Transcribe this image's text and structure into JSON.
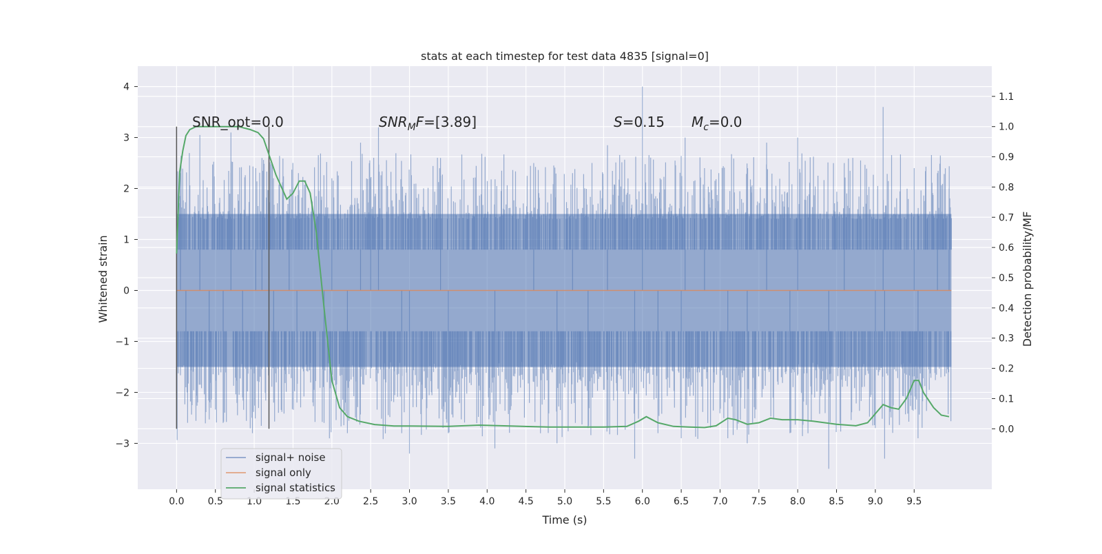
{
  "chart_data": {
    "type": "line",
    "title": "stats at each timestep for test data 4835 [signal=0]",
    "xlabel": "Time (s)",
    "ylabel_left": "Whitened strain",
    "ylabel_right": "Detection probability/MF",
    "xlim": [
      -0.5,
      10.5
    ],
    "ylim_left": [
      -3.9,
      4.4
    ],
    "ylim_right": [
      -0.2,
      1.2
    ],
    "x_ticks": [
      "0.0",
      "0.5",
      "1.0",
      "1.5",
      "2.0",
      "2.5",
      "3.0",
      "3.5",
      "4.0",
      "4.5",
      "5.0",
      "5.5",
      "6.0",
      "6.5",
      "7.0",
      "7.5",
      "8.0",
      "8.5",
      "9.0",
      "9.5"
    ],
    "y_ticks_left": [
      "−3",
      "−2",
      "−1",
      "0",
      "1",
      "2",
      "3",
      "4"
    ],
    "y_ticks_right": [
      "0.0",
      "0.1",
      "0.2",
      "0.3",
      "0.4",
      "0.5",
      "0.6",
      "0.7",
      "0.8",
      "0.9",
      "1.0",
      "1.1"
    ],
    "grid": true,
    "background": "#eaeaf2",
    "legend_position": "lower-left",
    "colors": {
      "noise": "#4c72b0",
      "signal": "#dd8452",
      "stats": "#55a868",
      "marker": "#555555"
    },
    "annotations": {
      "snr_opt": "SNR_opt=0.0",
      "snr_mf_sym": "SNR",
      "snr_mf_sub": "M",
      "snr_mf_sym2": "F",
      "snr_mf_val": "=[3.89]",
      "s_sym": "S",
      "s_val": "=0.15",
      "mc_sym": "M",
      "mc_sub": "c",
      "mc_val": "=0.0"
    },
    "vertical_markers": [
      0.0,
      1.19
    ],
    "series": [
      {
        "name": "signal+ noise",
        "style": "band",
        "x_range": [
          0.0,
          9.98
        ],
        "body_range": [
          -1.5,
          1.5
        ],
        "peaks": [
          [
            0.05,
            2.3
          ],
          [
            0.12,
            -1.9
          ],
          [
            0.3,
            3.05
          ],
          [
            0.42,
            -2.3
          ],
          [
            0.6,
            -2.6
          ],
          [
            0.7,
            3.1
          ],
          [
            0.85,
            -2.1
          ],
          [
            1.02,
            2.4
          ],
          [
            1.1,
            2.6
          ],
          [
            1.25,
            -2.2
          ],
          [
            1.45,
            1.8
          ],
          [
            1.55,
            -2.2
          ],
          [
            1.9,
            -2.6
          ],
          [
            2.0,
            2.2
          ],
          [
            2.2,
            -2.8
          ],
          [
            2.37,
            2.9
          ],
          [
            2.5,
            2.2
          ],
          [
            2.6,
            3.2
          ],
          [
            2.9,
            -2.8
          ],
          [
            3.0,
            -3.2
          ],
          [
            3.4,
            2.6
          ],
          [
            3.5,
            -2.8
          ],
          [
            4.1,
            -3.1
          ],
          [
            4.6,
            2.5
          ],
          [
            4.9,
            -3.0
          ],
          [
            5.1,
            2.3
          ],
          [
            5.3,
            -2.7
          ],
          [
            5.55,
            2.85
          ],
          [
            5.9,
            -3.3
          ],
          [
            6.0,
            4.0
          ],
          [
            6.2,
            -2.8
          ],
          [
            6.5,
            -2.9
          ],
          [
            6.55,
            3.0
          ],
          [
            6.8,
            2.4
          ],
          [
            7.1,
            -2.9
          ],
          [
            7.35,
            -3.0
          ],
          [
            7.6,
            2.9
          ],
          [
            7.9,
            -2.8
          ],
          [
            8.0,
            3.0
          ],
          [
            8.4,
            -3.5
          ],
          [
            8.6,
            2.5
          ],
          [
            9.0,
            -2.7
          ],
          [
            9.1,
            3.6
          ],
          [
            9.12,
            -3.3
          ],
          [
            9.5,
            2.4
          ],
          [
            9.55,
            -2.9
          ],
          [
            9.8,
            2.3
          ],
          [
            9.95,
            2.0
          ]
        ]
      },
      {
        "name": "signal only",
        "x": [
          0.0,
          9.98
        ],
        "y": [
          0.0,
          0.0
        ]
      },
      {
        "name": "signal statistics",
        "x": [
          0.0,
          0.04,
          0.08,
          0.12,
          0.17,
          0.25,
          0.4,
          0.6,
          0.8,
          0.95,
          1.05,
          1.12,
          1.2,
          1.28,
          1.35,
          1.42,
          1.5,
          1.58,
          1.65,
          1.72,
          1.8,
          1.9,
          2.0,
          2.1,
          2.2,
          2.35,
          2.55,
          2.8,
          3.0,
          3.5,
          3.9,
          4.3,
          4.8,
          5.2,
          5.5,
          5.8,
          5.95,
          6.05,
          6.2,
          6.4,
          6.6,
          6.8,
          6.95,
          7.1,
          7.2,
          7.35,
          7.5,
          7.65,
          7.8,
          8.0,
          8.2,
          8.5,
          8.75,
          8.9,
          9.0,
          9.1,
          9.2,
          9.3,
          9.4,
          9.5,
          9.56,
          9.62,
          9.75,
          9.85,
          9.95
        ],
        "y": [
          0.58,
          0.85,
          0.92,
          0.97,
          0.99,
          1.0,
          1.0,
          1.0,
          1.0,
          0.99,
          0.98,
          0.96,
          0.9,
          0.84,
          0.8,
          0.76,
          0.78,
          0.82,
          0.82,
          0.78,
          0.65,
          0.4,
          0.16,
          0.07,
          0.04,
          0.025,
          0.014,
          0.009,
          0.009,
          0.008,
          0.012,
          0.009,
          0.006,
          0.006,
          0.006,
          0.008,
          0.025,
          0.04,
          0.02,
          0.008,
          0.006,
          0.004,
          0.01,
          0.035,
          0.03,
          0.015,
          0.02,
          0.035,
          0.03,
          0.03,
          0.025,
          0.015,
          0.01,
          0.02,
          0.05,
          0.08,
          0.07,
          0.065,
          0.1,
          0.16,
          0.16,
          0.12,
          0.07,
          0.045,
          0.04
        ]
      }
    ]
  }
}
